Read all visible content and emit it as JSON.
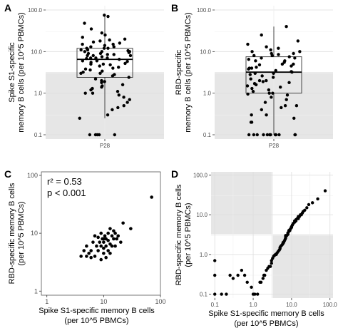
{
  "figure": {
    "panels": [
      {
        "letter": "A"
      },
      {
        "letter": "B"
      },
      {
        "letter": "C"
      },
      {
        "letter": "D"
      }
    ]
  },
  "chart_data": [
    {
      "panel": "A",
      "type": "box-scatter",
      "xlabel": "",
      "ylabel": [
        "Spike S1-specific",
        "memory B cells (per 10^5 PBMCs)"
      ],
      "categories": [
        "P28"
      ],
      "yscale": "log",
      "ylim": [
        0.1,
        100
      ],
      "yticks": [
        "0.1",
        "1.0",
        "10.0",
        "100.0"
      ],
      "shaded_below": 3.2,
      "box": {
        "whisker_low": 0.25,
        "q1": 2.4,
        "median": 6.5,
        "q3": 12,
        "whisker_high": 70
      },
      "points": [
        75,
        70,
        48,
        35,
        28,
        25,
        22,
        20,
        19,
        18,
        17,
        16,
        15,
        15,
        14,
        13,
        13,
        12,
        12,
        12,
        11,
        11,
        10.5,
        10,
        10,
        10,
        9.5,
        9,
        9,
        8.5,
        8.5,
        8,
        8,
        8,
        7.5,
        7,
        7,
        7,
        6.8,
        6.5,
        6.2,
        6,
        6,
        5.8,
        5.5,
        5.2,
        5,
        5,
        4.8,
        4.5,
        4.2,
        4,
        3.8,
        3.6,
        3.4,
        3.2,
        3,
        3,
        2.8,
        2.6,
        2.4,
        2.2,
        2,
        1.9,
        1.8,
        1.6,
        1.5,
        1.4,
        1.3,
        1.2,
        1.1,
        1,
        1,
        0.9,
        0.8,
        0.7,
        0.6,
        0.5,
        0.45,
        0.4,
        0.3,
        0.25,
        0.1,
        0.1,
        0.1,
        0.1,
        0.1
      ]
    },
    {
      "panel": "B",
      "type": "box-scatter",
      "xlabel": "",
      "ylabel": [
        "RBD-specific",
        "memory B cells (per 10^5 PBMCs)"
      ],
      "categories": [
        "P28"
      ],
      "yscale": "log",
      "ylim": [
        0.1,
        100
      ],
      "yticks": [
        "0.1",
        "1.0",
        "10.0",
        "100.0"
      ],
      "shaded_below": 3.2,
      "box": {
        "whisker_low": 0.1,
        "q1": 1.0,
        "median": 3.2,
        "q3": 7.5,
        "whisker_high": 40
      },
      "points": [
        40,
        25,
        18,
        15,
        13,
        12,
        11,
        10,
        10,
        9,
        9,
        8.5,
        8,
        8,
        7.5,
        7,
        7,
        6.5,
        6,
        6,
        5.5,
        5,
        5,
        4.8,
        4.5,
        4.2,
        4,
        4,
        3.8,
        3.5,
        3.3,
        3.2,
        3,
        3,
        2.8,
        2.6,
        2.4,
        2.2,
        2,
        2,
        1.9,
        1.8,
        1.7,
        1.6,
        1.5,
        1.4,
        1.3,
        1.2,
        1.1,
        1,
        1,
        0.95,
        0.9,
        0.8,
        0.7,
        0.6,
        0.5,
        0.5,
        0.45,
        0.4,
        0.3,
        0.3,
        0.25,
        0.2,
        0.2,
        0.1,
        0.1,
        0.1,
        0.1,
        0.1,
        0.1,
        0.1,
        0.1,
        0.1,
        0.1,
        0.1,
        0.1
      ]
    },
    {
      "panel": "C",
      "type": "scatter",
      "xlabel": [
        "Spike S1-specific memory B cells",
        "(per 10^5 PBMCs)"
      ],
      "ylabel": [
        "RBD-specific memory B cells",
        "(per 10^5 PBMCs)"
      ],
      "xscale": "log",
      "yscale": "log",
      "xlim": [
        0.8,
        100
      ],
      "ylim": [
        0.85,
        115
      ],
      "xticks": [
        "1",
        "10",
        "100"
      ],
      "yticks": [
        "1",
        "10",
        "100"
      ],
      "annotations": [
        "r² = 0.53",
        "p < 0.001"
      ],
      "points": [
        [
          70,
          42
        ],
        [
          30,
          12
        ],
        [
          22,
          15
        ],
        [
          20,
          7
        ],
        [
          18,
          9
        ],
        [
          17,
          8
        ],
        [
          16,
          10
        ],
        [
          16,
          6
        ],
        [
          15,
          11
        ],
        [
          15,
          8
        ],
        [
          14,
          9
        ],
        [
          13,
          6.5
        ],
        [
          13,
          12
        ],
        [
          12,
          10
        ],
        [
          12,
          7.5
        ],
        [
          12,
          5
        ],
        [
          11,
          8
        ],
        [
          11,
          6
        ],
        [
          10.5,
          9
        ],
        [
          10,
          7
        ],
        [
          10,
          5.5
        ],
        [
          10,
          4.5
        ],
        [
          9.5,
          8
        ],
        [
          9,
          6
        ],
        [
          9,
          10
        ],
        [
          8.5,
          7
        ],
        [
          8,
          5
        ],
        [
          8,
          8.5
        ],
        [
          7.5,
          6
        ],
        [
          7,
          4
        ],
        [
          7,
          9
        ],
        [
          6.5,
          7
        ],
        [
          6,
          5
        ],
        [
          6,
          3.8
        ],
        [
          5.5,
          4.5
        ],
        [
          5,
          6
        ],
        [
          5,
          4
        ],
        [
          4.5,
          5
        ],
        [
          4,
          4
        ],
        [
          9,
          3.5
        ],
        [
          11,
          3.8
        ],
        [
          13,
          4.5
        ],
        [
          14,
          6
        ],
        [
          10,
          8
        ]
      ]
    },
    {
      "panel": "D",
      "type": "scatter",
      "xlabel": [
        "Spike S1-specific memory B cells",
        "(per 10^5 PBMCs)"
      ],
      "ylabel": [
        "RBD-specific memory B cells",
        "(per 10^5 PBMCs)"
      ],
      "xscale": "log",
      "yscale": "log",
      "xlim": [
        0.08,
        120
      ],
      "ylim": [
        0.08,
        120
      ],
      "xticks": [
        "0.1",
        "1.0",
        "10.0",
        "100.0"
      ],
      "yticks": [
        "0.1",
        "1.0",
        "10.0",
        "100.0"
      ],
      "shaded_threshold": 3.2,
      "points": [
        [
          75,
          40
        ],
        [
          48,
          25
        ],
        [
          35,
          20
        ],
        [
          28,
          18
        ],
        [
          25,
          15
        ],
        [
          22,
          13
        ],
        [
          20,
          12
        ],
        [
          19,
          11
        ],
        [
          18,
          10
        ],
        [
          17,
          10
        ],
        [
          16,
          9
        ],
        [
          15,
          9
        ],
        [
          15,
          8
        ],
        [
          14,
          8
        ],
        [
          13,
          7.5
        ],
        [
          13,
          7
        ],
        [
          12,
          7
        ],
        [
          12,
          6.5
        ],
        [
          11,
          6
        ],
        [
          11,
          6
        ],
        [
          10.5,
          5.5
        ],
        [
          10,
          5
        ],
        [
          10,
          5
        ],
        [
          10,
          4.8
        ],
        [
          9.5,
          4.5
        ],
        [
          9,
          4.2
        ],
        [
          9,
          4
        ],
        [
          8.5,
          4
        ],
        [
          8.5,
          3.8
        ],
        [
          8,
          3.5
        ],
        [
          8,
          3.3
        ],
        [
          8,
          3.2
        ],
        [
          7.5,
          3
        ],
        [
          7,
          3
        ],
        [
          7,
          2.8
        ],
        [
          7,
          2.6
        ],
        [
          6.8,
          2.4
        ],
        [
          6.5,
          2.2
        ],
        [
          6.2,
          2
        ],
        [
          6,
          2
        ],
        [
          6,
          1.9
        ],
        [
          5.8,
          1.8
        ],
        [
          5.5,
          1.7
        ],
        [
          5.2,
          1.6
        ],
        [
          5,
          1.5
        ],
        [
          5,
          1.4
        ],
        [
          4.8,
          1.3
        ],
        [
          4.5,
          1.2
        ],
        [
          4.2,
          1.1
        ],
        [
          4,
          1
        ],
        [
          3.8,
          1
        ],
        [
          3.6,
          0.95
        ],
        [
          3.4,
          0.9
        ],
        [
          3.2,
          0.8
        ],
        [
          3,
          0.7
        ],
        [
          3,
          0.6
        ],
        [
          2.8,
          0.5
        ],
        [
          2.6,
          0.5
        ],
        [
          2.4,
          0.45
        ],
        [
          2.2,
          0.4
        ],
        [
          2,
          0.3
        ],
        [
          1.9,
          0.3
        ],
        [
          1.8,
          0.25
        ],
        [
          1.6,
          0.2
        ],
        [
          1.5,
          0.2
        ],
        [
          1.3,
          0.1
        ],
        [
          1.1,
          0.1
        ],
        [
          1,
          0.1
        ],
        [
          0.9,
          0.15
        ],
        [
          0.7,
          0.2
        ],
        [
          0.6,
          0.3
        ],
        [
          0.5,
          0.4
        ],
        [
          0.4,
          0.3
        ],
        [
          0.3,
          0.25
        ],
        [
          0.25,
          0.3
        ],
        [
          0.2,
          0.1
        ],
        [
          0.1,
          0.1
        ],
        [
          0.1,
          0.7
        ],
        [
          0.1,
          0.3
        ],
        [
          0.15,
          0.1
        ]
      ]
    }
  ]
}
